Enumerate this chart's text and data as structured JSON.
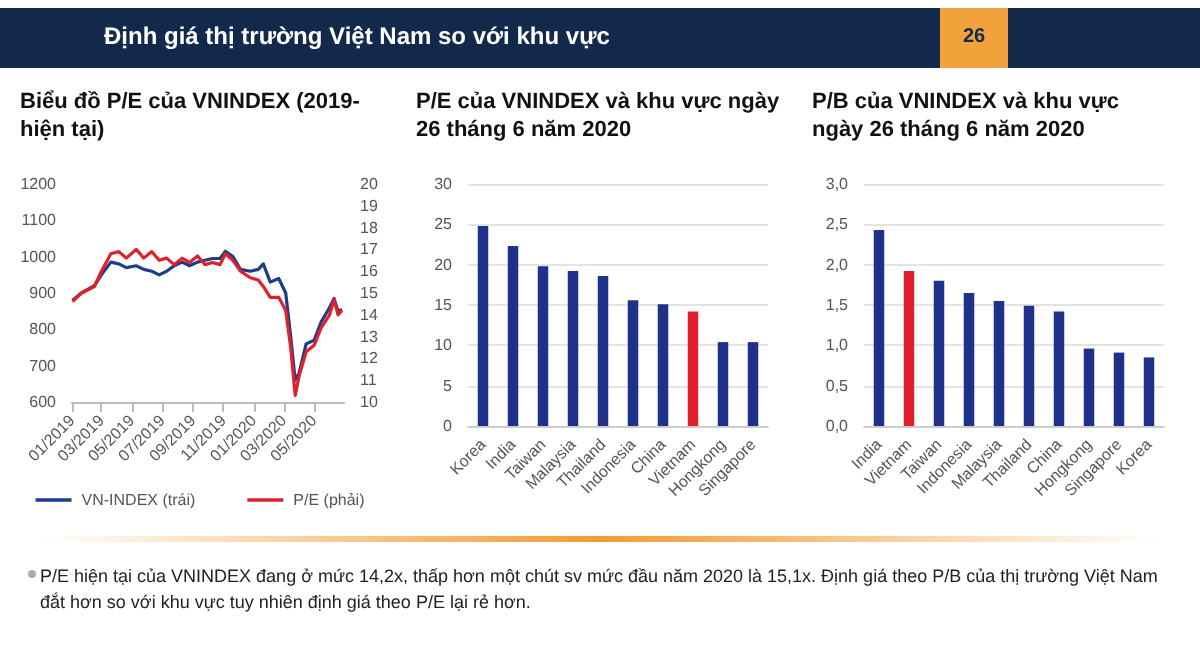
{
  "chart_data": [
    {
      "type": "line",
      "title": "Biểu đồ P/E của VNINDEX (2019-hiện tại)",
      "annotations": [
        "Định giá thị trường Việt Nam so với khu vực",
        "26",
        "P/E hiện tại của VNINDEX đang ở mức 14,2x, thấp hơn một chút sv mức đầu năm 2020 là 15,1x. Định giá theo P/B của thị trường Việt Nam đắt hơn so với khu vực tuy nhiên định giá theo P/E lại rẻ hơn."
      ],
      "x": [
        "2019-01-02",
        "2019-01-20",
        "2019-02-15",
        "2019-03-01",
        "2019-03-20",
        "2019-04-05",
        "2019-04-20",
        "2019-05-10",
        "2019-05-25",
        "2019-06-10",
        "2019-06-25",
        "2019-07-10",
        "2019-07-25",
        "2019-08-10",
        "2019-08-25",
        "2019-09-10",
        "2019-09-25",
        "2019-10-10",
        "2019-10-25",
        "2019-11-05",
        "2019-11-20",
        "2019-12-05",
        "2019-12-25",
        "2020-01-10",
        "2020-01-20",
        "2020-02-03",
        "2020-02-20",
        "2020-03-05",
        "2020-03-15",
        "2020-03-24",
        "2020-04-01",
        "2020-04-15",
        "2020-05-01",
        "2020-05-15",
        "2020-06-01",
        "2020-06-10",
        "2020-06-18",
        "2020-06-26"
      ],
      "series": [
        {
          "name": "VN-INDEX (trái)",
          "color": "#1f3c8c",
          "values": [
            880,
            900,
            920,
            950,
            985,
            980,
            970,
            975,
            965,
            960,
            950,
            960,
            975,
            985,
            975,
            985,
            990,
            995,
            995,
            1015,
            1000,
            965,
            960,
            965,
            980,
            930,
            940,
            900,
            780,
            660,
            680,
            760,
            770,
            820,
            860,
            885,
            850,
            855
          ]
        },
        {
          "name": "P/E (phải)",
          "color": "#e0202a",
          "axis": "y2",
          "values": [
            14.6,
            15.0,
            15.3,
            16.0,
            16.8,
            16.9,
            16.6,
            17.0,
            16.6,
            16.9,
            16.5,
            16.6,
            16.3,
            16.6,
            16.4,
            16.7,
            16.3,
            16.4,
            16.3,
            16.8,
            16.5,
            16.0,
            15.7,
            15.6,
            15.3,
            14.8,
            14.8,
            14.2,
            12.5,
            10.3,
            11.2,
            12.3,
            12.6,
            13.4,
            14.0,
            14.7,
            14.0,
            14.2
          ]
        }
      ],
      "xlim": [
        "2019-01-01",
        "2020-06-30"
      ],
      "xticks": [
        {
          "value": "2019-01-01",
          "label": "01/2019"
        },
        {
          "value": "2019-03-01",
          "label": "03/2019"
        },
        {
          "value": "2019-05-01",
          "label": "05/2019"
        },
        {
          "value": "2019-07-01",
          "label": "07/2019"
        },
        {
          "value": "2019-09-01",
          "label": "09/2019"
        },
        {
          "value": "2019-11-01",
          "label": "11/2019"
        },
        {
          "value": "2020-01-01",
          "label": "01/2020"
        },
        {
          "value": "2020-03-01",
          "label": "03/2020"
        },
        {
          "value": "2020-05-01",
          "label": "05/2020"
        }
      ],
      "ylim": [
        600,
        1200
      ],
      "yticks": [
        600,
        700,
        800,
        900,
        1000,
        1100,
        1200
      ],
      "y2lim": [
        10,
        20
      ],
      "y2ticks": [
        10,
        11,
        12,
        13,
        14,
        15,
        16,
        17,
        18,
        19,
        20
      ],
      "grid": false,
      "legend": "bottom",
      "marker": "none"
    },
    {
      "type": "bar",
      "title": "P/E của VNINDEX và khu vực ngày 26 tháng 6 năm 2020",
      "categories": [
        "Korea",
        "India",
        "Taiwan",
        "Malaysia",
        "Thailand",
        "Indonesia",
        "China",
        "Vietnam",
        "Hongkong",
        "Singapore"
      ],
      "values": [
        24.8,
        22.3,
        19.8,
        19.2,
        18.6,
        15.6,
        15.1,
        14.2,
        10.4,
        10.4
      ],
      "colors": [
        "#1f3189",
        "#1f3189",
        "#1f3189",
        "#1f3189",
        "#1f3189",
        "#1f3189",
        "#1f3189",
        "#e0202a",
        "#1f3189",
        "#1f3189"
      ],
      "ylim": [
        0,
        30
      ],
      "yticks": [
        0,
        5,
        10,
        15,
        20,
        25,
        30
      ],
      "grid": "y"
    },
    {
      "type": "bar",
      "title": "P/B của VNINDEX và khu vực ngày 26 tháng 6 năm 2020",
      "categories": [
        "India",
        "Vietnam",
        "Taiwan",
        "Indonesia",
        "Malaysia",
        "Thailand",
        "China",
        "Hongkong",
        "Singapore",
        "Korea"
      ],
      "values": [
        2.43,
        1.92,
        1.8,
        1.65,
        1.55,
        1.49,
        1.42,
        0.96,
        0.91,
        0.85
      ],
      "colors": [
        "#1f3189",
        "#e0202a",
        "#1f3189",
        "#1f3189",
        "#1f3189",
        "#1f3189",
        "#1f3189",
        "#1f3189",
        "#1f3189",
        "#1f3189"
      ],
      "ylim": [
        0,
        3
      ],
      "yticks": [
        {
          "value": 0,
          "label": "0,0"
        },
        {
          "value": 0.5,
          "label": "0,5"
        },
        {
          "value": 1,
          "label": "1,0"
        },
        {
          "value": 1.5,
          "label": "1,5"
        },
        {
          "value": 2,
          "label": "2,0"
        },
        {
          "value": 2.5,
          "label": "2,5"
        },
        {
          "value": 3,
          "label": "3,0"
        }
      ],
      "grid": "y"
    }
  ]
}
